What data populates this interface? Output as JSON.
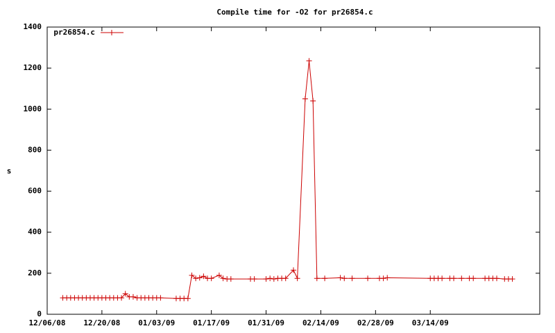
{
  "chart_data": {
    "type": "line",
    "title": "Compile time for -O2 for pr26854.c",
    "y_label": "s",
    "x": [
      "12/10/08",
      "12/11/08",
      "12/12/08",
      "12/13/08",
      "12/14/08",
      "12/15/08",
      "12/16/08",
      "12/17/08",
      "12/18/08",
      "12/19/08",
      "12/20/08",
      "12/21/08",
      "12/22/08",
      "12/23/08",
      "12/24/08",
      "12/25/08",
      "12/26/08",
      "12/27/08",
      "12/28/08",
      "12/29/08",
      "12/30/08",
      "12/31/08",
      "01/01/09",
      "01/02/09",
      "01/03/09",
      "01/04/09",
      "01/08/09",
      "01/09/09",
      "01/10/09",
      "01/11/09",
      "01/12/09",
      "01/13/09",
      "01/14/09",
      "01/15/09",
      "01/16/09",
      "01/17/09",
      "01/19/09",
      "01/20/09",
      "01/21/09",
      "01/22/09",
      "01/27/09",
      "01/28/09",
      "01/31/09",
      "02/01/09",
      "02/02/09",
      "02/03/09",
      "02/04/09",
      "02/05/09",
      "02/07/09",
      "02/08/09",
      "02/10/09",
      "02/11/09",
      "02/12/09",
      "02/13/09",
      "02/15/09",
      "02/19/09",
      "02/20/09",
      "02/22/09",
      "02/26/09",
      "03/01/09",
      "03/02/09",
      "03/03/09",
      "03/14/09",
      "03/15/09",
      "03/16/09",
      "03/17/09",
      "03/19/09",
      "03/20/09",
      "03/22/09",
      "03/24/09",
      "03/25/09",
      "03/28/09",
      "03/29/09",
      "03/30/09",
      "03/31/09",
      "04/02/09",
      "04/03/09",
      "04/04/09"
    ],
    "series": [
      {
        "name": "pr26854.c",
        "color": "#cc0000",
        "values": [
          80,
          80,
          80,
          80,
          80,
          80,
          80,
          80,
          80,
          80,
          80,
          80,
          80,
          80,
          80,
          80,
          100,
          85,
          85,
          80,
          80,
          80,
          80,
          80,
          80,
          80,
          77,
          77,
          77,
          77,
          190,
          175,
          178,
          185,
          175,
          175,
          190,
          175,
          172,
          172,
          172,
          172,
          172,
          175,
          172,
          175,
          175,
          175,
          215,
          175,
          1050,
          1235,
          1040,
          175,
          175,
          178,
          175,
          175,
          175,
          175,
          175,
          178,
          175,
          175,
          175,
          175,
          175,
          175,
          175,
          175,
          175,
          175,
          175,
          175,
          175,
          172,
          172,
          172
        ]
      }
    ],
    "xlim": [
      "12/06/08",
      "04/11/09"
    ],
    "xticks": [
      "12/06/08",
      "12/20/08",
      "01/03/09",
      "01/17/09",
      "01/31/09",
      "02/14/09",
      "02/28/09",
      "03/14/09"
    ],
    "ylim": [
      0,
      1400
    ],
    "yticks": [
      0,
      200,
      400,
      600,
      800,
      1000,
      1200,
      1400
    ],
    "legend": "top-left",
    "grid": false
  }
}
